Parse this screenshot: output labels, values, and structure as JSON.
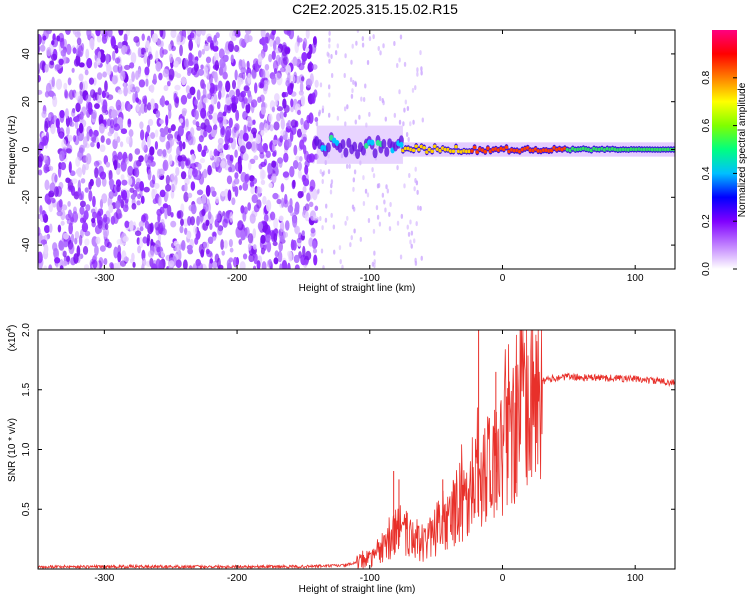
{
  "chart_data": [
    {
      "type": "heatmap",
      "title": "C2E2.2025.315.15.02.R15",
      "xlabel": "Height of straight line (km)",
      "ylabel": "Frequency (Hz)",
      "xlim": [
        -350,
        130
      ],
      "ylim": [
        -50,
        50
      ],
      "xticks": [
        -300,
        -200,
        -100,
        0,
        100
      ],
      "xtick_labels": [
        "-300",
        "-200",
        "-100",
        "0",
        "100"
      ],
      "yticks": [
        40,
        20,
        0,
        -20,
        -40
      ],
      "ytick_labels": [
        "40",
        "20",
        "0",
        "-20",
        "-40"
      ],
      "colorbar": {
        "label": "Normalized spectral amplitude",
        "range": [
          0.0,
          1.0
        ],
        "ticks": [
          0.0,
          0.2,
          0.4,
          0.6,
          0.8
        ],
        "tick_labels": [
          "0.0",
          "0.2",
          "0.4",
          "0.6",
          "0.8"
        ],
        "colors": [
          "#ffffff",
          "#c080ff",
          "#8000ff",
          "#0000ff",
          "#00c0ff",
          "#00ff80",
          "#80ff00",
          "#ffff00",
          "#ff8000",
          "#ff0000",
          "#ff0080"
        ]
      },
      "regions": [
        {
          "name": "noise",
          "x_range": [
            -350,
            -140
          ],
          "description": "broadband purple speckle"
        },
        {
          "name": "signal-start",
          "x_range": [
            -140,
            -75
          ],
          "freq_center": 2,
          "freq_width": 8
        },
        {
          "name": "signal-settled",
          "x_range": [
            -75,
            130
          ],
          "freq_center": 0,
          "freq_width": 3
        }
      ]
    },
    {
      "type": "line",
      "xlabel": "Height of straight line (km)",
      "ylabel": "SNR (10 * v/v)",
      "multiplier_label": "(x10",
      "multiplier_exp": "4",
      "multiplier_close": ")",
      "xlim": [
        -350,
        130
      ],
      "ylim": [
        0,
        2.0
      ],
      "xticks": [
        -300,
        -200,
        -100,
        0,
        100
      ],
      "xtick_labels": [
        "-300",
        "-200",
        "-100",
        "0",
        "100"
      ],
      "yticks": [
        0.5,
        1.0,
        1.5,
        2.0
      ],
      "ytick_labels": [
        "0.5",
        "1.0",
        "1.5",
        "2.0"
      ],
      "color": "#e8302a",
      "series": [
        {
          "name": "SNR",
          "x": [
            -350,
            -300,
            -250,
            -200,
            -150,
            -120,
            -110,
            -100,
            -90,
            -80,
            -75,
            -70,
            -60,
            -50,
            -40,
            -30,
            -20,
            -10,
            0,
            10,
            20,
            30,
            40,
            50,
            60,
            80,
            100,
            120,
            130
          ],
          "y": [
            0.02,
            0.02,
            0.02,
            0.02,
            0.02,
            0.03,
            0.05,
            0.08,
            0.15,
            0.3,
            0.35,
            0.25,
            0.2,
            0.3,
            0.4,
            0.55,
            0.7,
            0.85,
            1.0,
            1.2,
            1.45,
            1.57,
            1.6,
            1.61,
            1.6,
            1.6,
            1.59,
            1.57,
            1.56
          ]
        }
      ],
      "spikes": [
        {
          "x": -82,
          "y": 0.82
        },
        {
          "x": -78,
          "y": 0.75
        },
        {
          "x": -45,
          "y": 0.75
        },
        {
          "x": -18,
          "y": 2.0
        },
        {
          "x": -5,
          "y": 1.65
        },
        {
          "x": 10,
          "y": 1.7
        }
      ]
    }
  ]
}
